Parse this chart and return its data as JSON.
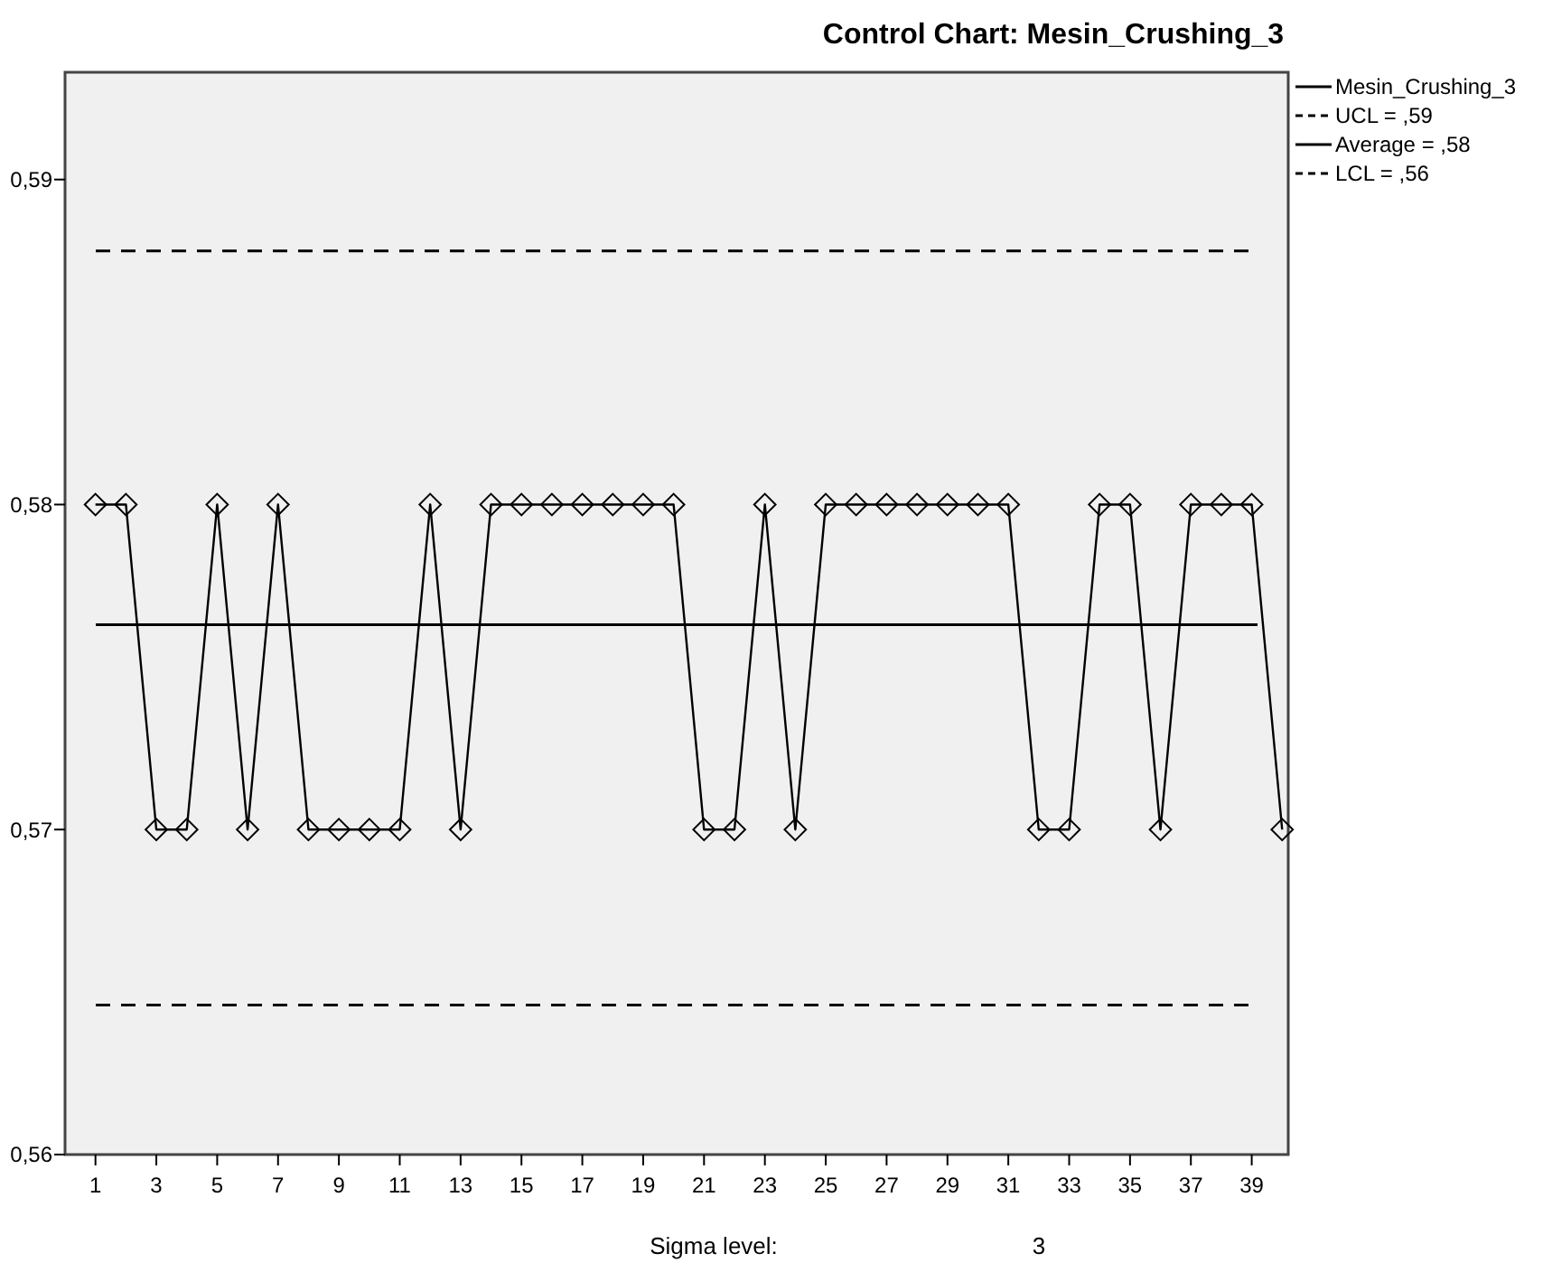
{
  "chart_data": {
    "type": "line",
    "title": "Control Chart: Mesin_Crushing_3",
    "x": [
      1,
      2,
      3,
      4,
      5,
      6,
      7,
      8,
      9,
      10,
      11,
      12,
      13,
      14,
      15,
      16,
      17,
      18,
      19,
      20,
      21,
      22,
      23,
      24,
      25,
      26,
      27,
      28,
      29,
      30,
      31,
      32,
      33,
      34,
      35,
      36,
      37,
      38,
      39,
      40
    ],
    "series": [
      {
        "name": "Mesin_Crushing_3",
        "color": "#000000",
        "values": [
          0.58,
          0.58,
          0.57,
          0.57,
          0.58,
          0.57,
          0.58,
          0.57,
          0.57,
          0.57,
          0.57,
          0.58,
          0.57,
          0.58,
          0.58,
          0.58,
          0.58,
          0.58,
          0.58,
          0.58,
          0.57,
          0.57,
          0.58,
          0.57,
          0.58,
          0.58,
          0.58,
          0.58,
          0.58,
          0.58,
          0.58,
          0.57,
          0.57,
          0.58,
          0.58,
          0.57,
          0.58,
          0.58,
          0.58,
          0.57
        ]
      }
    ],
    "xlim": [
      0,
      40.2
    ],
    "xticks": [
      1,
      3,
      5,
      7,
      9,
      11,
      13,
      15,
      17,
      19,
      21,
      23,
      25,
      27,
      29,
      31,
      33,
      35,
      37,
      39
    ],
    "ylim": [
      0.56,
      0.5933
    ],
    "yticks": [
      {
        "value": 0.56,
        "label": "0,56"
      },
      {
        "value": 0.57,
        "label": "0,57"
      },
      {
        "value": 0.58,
        "label": "0,58"
      },
      {
        "value": 0.59,
        "label": "0,59"
      }
    ],
    "ref_lines": [
      {
        "axis": "y",
        "value": 0.5878,
        "label": "UCL = ,59",
        "line_style": "dashed",
        "color": "#000000"
      },
      {
        "axis": "y",
        "value": 0.5763,
        "label": "Average = ,58",
        "line_style": "solid",
        "color": "#000000"
      },
      {
        "axis": "y",
        "value": 0.5646,
        "label": "LCL = ,56",
        "line_style": "dashed",
        "color": "#000000"
      }
    ],
    "annotations": [
      "Sigma level:",
      "3"
    ],
    "marker": "diamond",
    "line_style": "solid",
    "grid": false,
    "legend": "top right"
  }
}
